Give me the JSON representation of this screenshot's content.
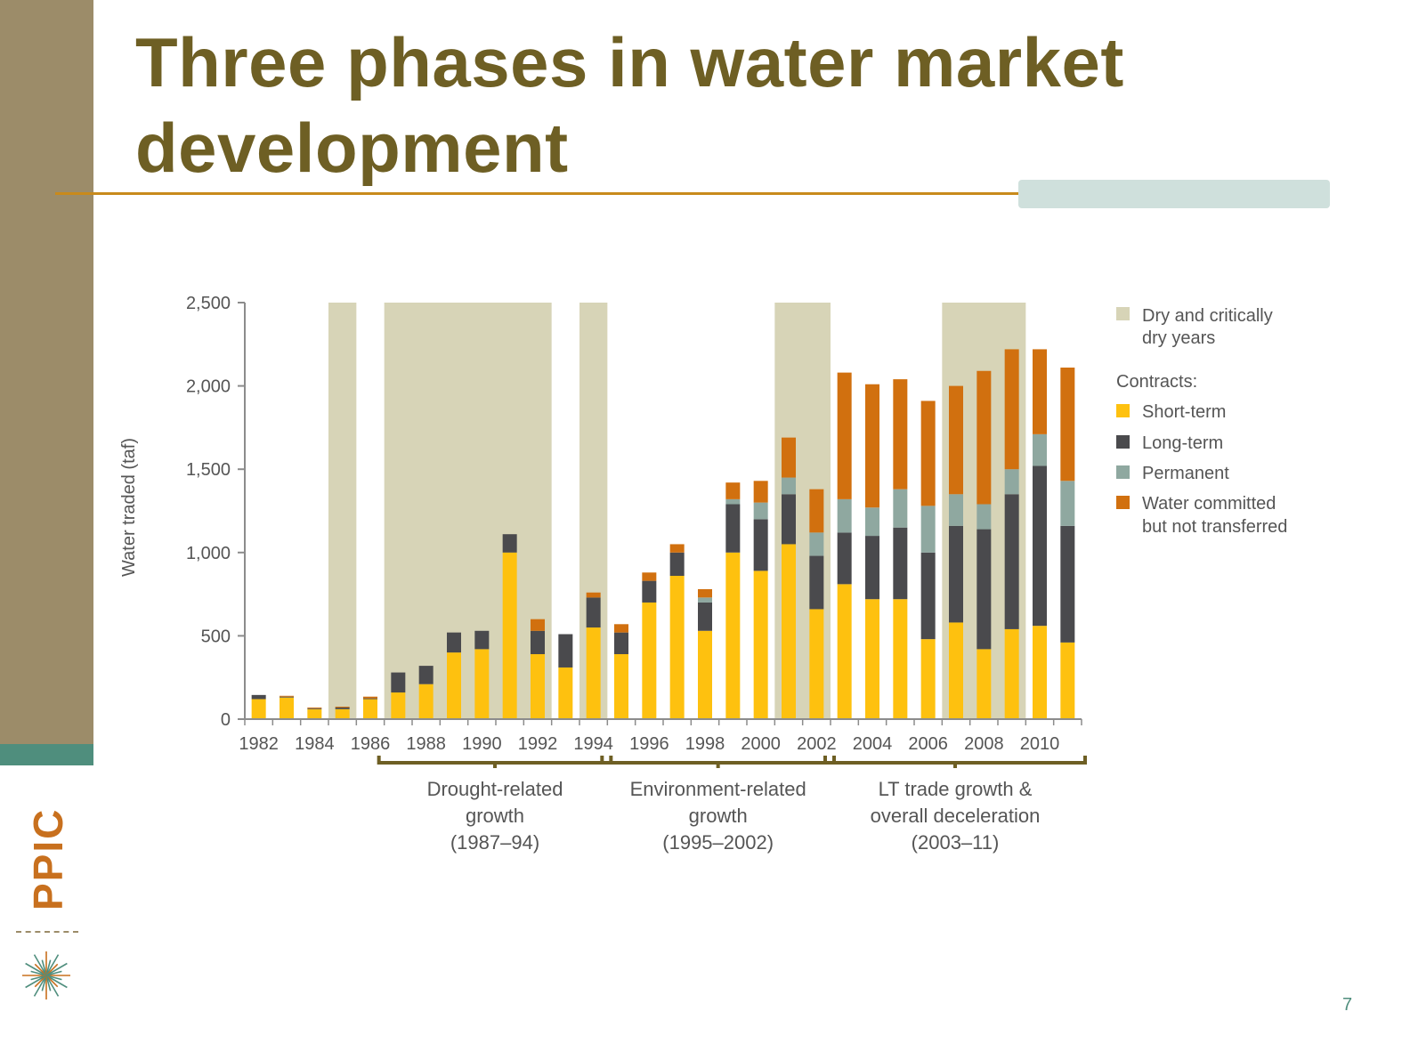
{
  "slide": {
    "title": "Three phases in water market development",
    "page_number": "7",
    "logo_text": "PPIC"
  },
  "colors": {
    "band": "#9c8c69",
    "teal": "#4f8e7d",
    "title": "#6e5f24",
    "rule": "#c88a1c",
    "accent": "#cfe0dc",
    "dry": "#d7d4b7",
    "short_term": "#fec10f",
    "long_term": "#4a4a4d",
    "permanent": "#8fa8a0",
    "committed": "#d1700f",
    "axis": "#8c8c8c",
    "text": "#555555",
    "bracket": "#6e5f24"
  },
  "chart_data": {
    "type": "bar",
    "stacked": true,
    "ylabel": "Water traded (taf)",
    "ylim": [
      0,
      2500
    ],
    "yticks": [
      0,
      500,
      1000,
      1500,
      2000,
      2500
    ],
    "ytick_labels": [
      "0",
      "500",
      "1,000",
      "1,500",
      "2,000",
      "2,500"
    ],
    "categories": [
      1982,
      1983,
      1984,
      1985,
      1986,
      1987,
      1988,
      1989,
      1990,
      1991,
      1992,
      1993,
      1994,
      1995,
      1996,
      1997,
      1998,
      1999,
      2000,
      2001,
      2002,
      2003,
      2004,
      2005,
      2006,
      2007,
      2008,
      2009,
      2010,
      2011
    ],
    "xtick_labels": [
      "1982",
      "1984",
      "1986",
      "1988",
      "1990",
      "1992",
      "1994",
      "1996",
      "1998",
      "2000",
      "2002",
      "2004",
      "2006",
      "2008",
      "2010"
    ],
    "dry_years": [
      [
        1985,
        1985
      ],
      [
        1987,
        1992
      ],
      [
        1994,
        1994
      ],
      [
        2001,
        2002
      ],
      [
        2007,
        2009
      ]
    ],
    "series": [
      {
        "name": "Short-term",
        "color_key": "short_term",
        "values": [
          120,
          130,
          60,
          60,
          120,
          160,
          210,
          400,
          420,
          1000,
          390,
          310,
          550,
          390,
          700,
          860,
          530,
          1000,
          890,
          1050,
          660,
          810,
          720,
          720,
          480,
          580,
          420,
          540,
          560,
          460
        ]
      },
      {
        "name": "Long-term",
        "color_key": "long_term",
        "values": [
          25,
          5,
          5,
          10,
          5,
          120,
          110,
          120,
          110,
          110,
          140,
          200,
          180,
          130,
          130,
          140,
          170,
          290,
          310,
          300,
          320,
          310,
          380,
          430,
          520,
          580,
          720,
          810,
          960,
          700
        ]
      },
      {
        "name": "Permanent",
        "color_key": "permanent",
        "values": [
          0,
          0,
          0,
          0,
          0,
          0,
          0,
          0,
          0,
          0,
          0,
          0,
          0,
          0,
          0,
          0,
          30,
          30,
          100,
          100,
          140,
          200,
          170,
          230,
          280,
          190,
          150,
          150,
          190,
          270
        ]
      },
      {
        "name": "Water committed but not transferred",
        "color_key": "committed",
        "values": [
          0,
          5,
          5,
          5,
          10,
          0,
          0,
          0,
          0,
          0,
          70,
          0,
          30,
          50,
          50,
          50,
          50,
          100,
          130,
          240,
          260,
          760,
          740,
          660,
          630,
          650,
          800,
          720,
          510,
          680
        ]
      }
    ],
    "legend": {
      "placement": "right",
      "dry_label": [
        "Dry and critically",
        "dry years"
      ],
      "contracts_heading": "Contracts:",
      "entries": [
        {
          "label": [
            "Short-term"
          ],
          "color_key": "short_term"
        },
        {
          "label": [
            "Long-term"
          ],
          "color_key": "long_term"
        },
        {
          "label": [
            "Permanent"
          ],
          "color_key": "permanent"
        },
        {
          "label": [
            "Water committed",
            "but not transferred"
          ],
          "color_key": "committed"
        }
      ]
    },
    "phases": [
      {
        "from": 1987,
        "to": 1994,
        "label": [
          "Drought-related",
          "growth",
          "(1987–94)"
        ]
      },
      {
        "from": 1995,
        "to": 2002,
        "label": [
          "Environment-related",
          "growth",
          "(1995–2002)"
        ]
      },
      {
        "from": 2003,
        "to": 2011,
        "label": [
          "LT trade growth &",
          "overall deceleration",
          "(2003–11)"
        ]
      }
    ]
  }
}
